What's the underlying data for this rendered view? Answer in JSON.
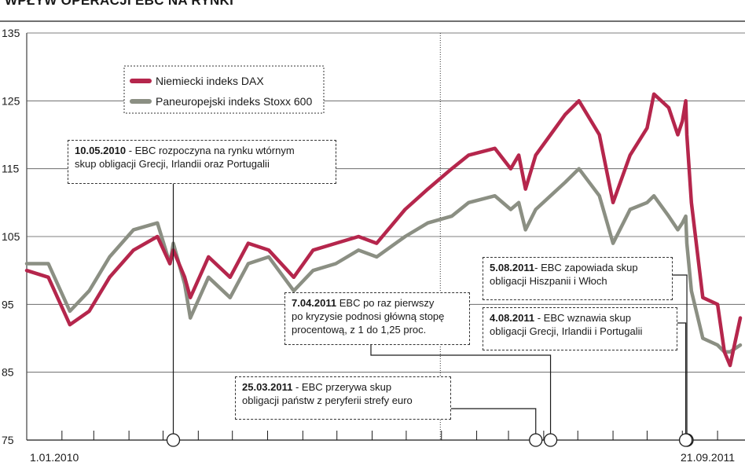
{
  "chart_data": {
    "type": "line",
    "title": "WPŁYW OPERACJI EBC NA RYNKI",
    "ylim": [
      75,
      135
    ],
    "y_ticks": [
      "135",
      "125",
      "115",
      "105",
      "95",
      "85",
      "75"
    ],
    "x_start_label": "1.01.2010",
    "x_end_label": "21.09.2011",
    "grid": "horizontal",
    "legend_position": "top-left",
    "series": [
      {
        "name": "Niemiecki indeks DAX",
        "color": "#b5264c",
        "x": [
          "2010-01-01",
          "2010-01-20",
          "2010-02-08",
          "2010-02-25",
          "2010-03-15",
          "2010-04-05",
          "2010-04-26",
          "2010-05-07",
          "2010-05-10",
          "2010-05-20",
          "2010-05-25",
          "2010-06-10",
          "2010-06-29",
          "2010-07-15",
          "2010-08-02",
          "2010-08-24",
          "2010-09-10",
          "2010-09-30",
          "2010-10-20",
          "2010-11-05",
          "2010-11-30",
          "2010-12-20",
          "2011-01-10",
          "2011-01-25",
          "2011-02-17",
          "2011-03-03",
          "2011-03-10",
          "2011-03-16",
          "2011-03-25",
          "2011-04-07",
          "2011-04-20",
          "2011-05-02",
          "2011-05-20",
          "2011-06-01",
          "2011-06-16",
          "2011-07-01",
          "2011-07-07",
          "2011-07-20",
          "2011-07-28",
          "2011-08-01",
          "2011-08-04",
          "2011-08-05",
          "2011-08-09",
          "2011-08-19",
          "2011-09-01",
          "2011-09-07",
          "2011-09-12",
          "2011-09-21"
        ],
        "values": [
          100,
          99,
          92,
          94,
          99,
          103,
          105,
          101,
          103,
          99,
          96,
          102,
          99,
          104,
          103,
          99,
          103,
          104,
          105,
          104,
          109,
          112,
          115,
          117,
          118,
          115,
          117,
          112,
          117,
          120,
          123,
          125,
          120,
          110,
          117,
          121,
          126,
          124,
          120,
          122,
          125,
          120,
          110,
          96,
          95,
          88,
          86,
          93
        ]
      },
      {
        "name": "Paneuropejski indeks Stoxx 600",
        "color": "#8b8f83",
        "x": [
          "2010-01-01",
          "2010-01-20",
          "2010-02-08",
          "2010-02-25",
          "2010-03-15",
          "2010-04-05",
          "2010-04-26",
          "2010-05-07",
          "2010-05-10",
          "2010-05-20",
          "2010-05-25",
          "2010-06-10",
          "2010-06-29",
          "2010-07-15",
          "2010-08-02",
          "2010-08-24",
          "2010-09-10",
          "2010-09-30",
          "2010-10-20",
          "2010-11-05",
          "2010-11-30",
          "2010-12-20",
          "2011-01-10",
          "2011-01-25",
          "2011-02-17",
          "2011-03-03",
          "2011-03-10",
          "2011-03-16",
          "2011-03-25",
          "2011-04-07",
          "2011-04-20",
          "2011-05-02",
          "2011-05-20",
          "2011-06-01",
          "2011-06-16",
          "2011-07-01",
          "2011-07-07",
          "2011-07-20",
          "2011-07-28",
          "2011-08-01",
          "2011-08-04",
          "2011-08-05",
          "2011-08-09",
          "2011-08-19",
          "2011-09-01",
          "2011-09-07",
          "2011-09-12",
          "2011-09-21"
        ],
        "values": [
          101,
          101,
          94,
          97,
          102,
          106,
          107,
          101,
          104,
          98,
          93,
          99,
          96,
          101,
          102,
          97,
          100,
          101,
          103,
          102,
          105,
          107,
          108,
          110,
          111,
          109,
          110,
          106,
          109,
          111,
          113,
          115,
          111,
          104,
          109,
          110,
          111,
          108,
          106,
          107,
          108,
          104,
          97,
          90,
          89,
          88,
          88,
          89
        ]
      }
    ],
    "vertical_line_date": "2010-12-31"
  },
  "annotations": [
    {
      "date": "10.05.2010",
      "text": " - EBC rozpoczyna na rynku wtórnym",
      "text2": "skup obligacji Grecji, Irlandii oraz Portugalii"
    },
    {
      "date": "7.04.2011",
      "text": " EBC po raz pierwszy",
      "text2": "po kryzysie podnosi główną stopę",
      "text3": "procentową, z 1 do 1,25 proc."
    },
    {
      "date": "25.03.2011",
      "text": " - EBC przerywa skup",
      "text2": "obligacji państw z peryferii strefy euro"
    },
    {
      "date": "5.08.2011",
      "text": "- EBC zapowiada skup",
      "text2": "obligacji Hiszpanii i Włoch"
    },
    {
      "date": "4.08.2011",
      "text": " - EBC wznawia skup",
      "text2": "obligacji Grecji, Irlandii i Portugalii"
    }
  ]
}
